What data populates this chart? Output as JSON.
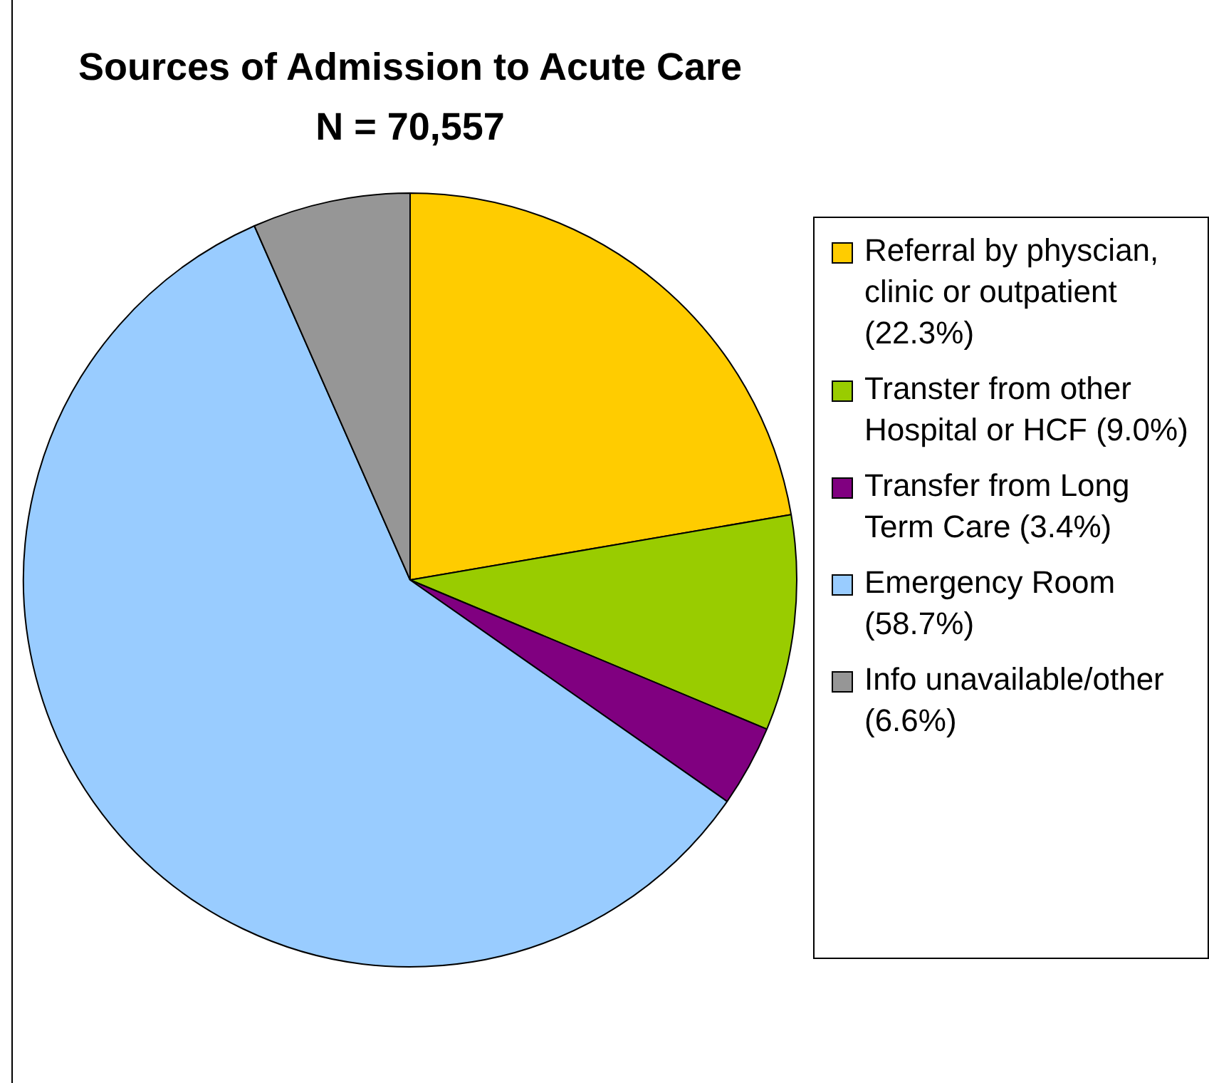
{
  "chart_data": {
    "type": "pie",
    "title": "Sources of Admission to Acute Care",
    "subtitle": "N = 70,557",
    "categories": [
      "Referral by physcian, clinic or outpatient (22.3%)",
      "Transter from other Hospital or HCF (9.0%)",
      "Transfer from Long Term Care (3.4%)",
      "Emergency Room (58.7%)",
      "Info unavailable/other (6.6%)"
    ],
    "values": [
      22.3,
      9.0,
      3.4,
      58.7,
      6.6
    ],
    "colors": [
      "#ffcc00",
      "#99cc00",
      "#800080",
      "#99ccff",
      "#969696"
    ],
    "legend": "right"
  }
}
